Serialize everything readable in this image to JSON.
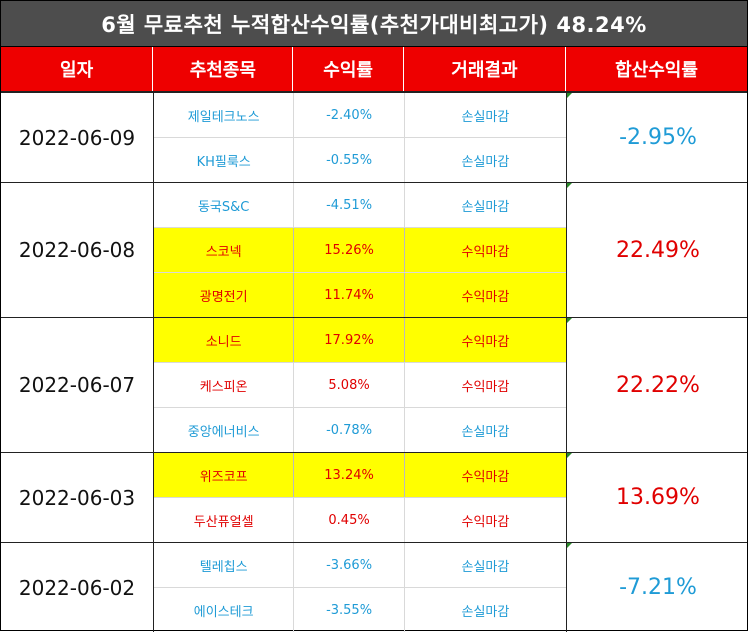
{
  "title": "6월 무료추천 누적합산수익률(추천가대비최고가) 48.24%",
  "headers": [
    "일자",
    "추천종목",
    "수익률",
    "거래결과",
    "합산수익률"
  ],
  "colors": {
    "positive": "#e00000",
    "negative": "#1f9bd6",
    "highlight": "#ffff00",
    "header": "#ee0000",
    "title_bg": "#4d4d4d"
  },
  "groups": [
    {
      "date": "2022-06-09",
      "total": "-2.95%",
      "rows": [
        {
          "name": "제일테크노스",
          "rate": "-2.40%",
          "result": "손실마감"
        },
        {
          "name": "KH필룩스",
          "rate": "-0.55%",
          "result": "손실마감"
        }
      ]
    },
    {
      "date": "2022-06-08",
      "total": "22.49%",
      "rows": [
        {
          "name": "동국S&C",
          "rate": "-4.51%",
          "result": "손실마감"
        },
        {
          "name": "스코넥",
          "rate": "15.26%",
          "result": "수익마감"
        },
        {
          "name": "광명전기",
          "rate": "11.74%",
          "result": "수익마감"
        }
      ]
    },
    {
      "date": "2022-06-07",
      "total": "22.22%",
      "rows": [
        {
          "name": "소니드",
          "rate": "17.92%",
          "result": "수익마감"
        },
        {
          "name": "케스피온",
          "rate": "5.08%",
          "result": "수익마감"
        },
        {
          "name": "중앙에너비스",
          "rate": "-0.78%",
          "result": "손실마감"
        }
      ]
    },
    {
      "date": "2022-06-03",
      "total": "13.69%",
      "rows": [
        {
          "name": "위즈코프",
          "rate": "13.24%",
          "result": "수익마감"
        },
        {
          "name": "두산퓨얼셀",
          "rate": "0.45%",
          "result": "수익마감"
        }
      ]
    },
    {
      "date": "2022-06-02",
      "total": "-7.21%",
      "rows": [
        {
          "name": "텔레칩스",
          "rate": "-3.66%",
          "result": "손실마감"
        },
        {
          "name": "에이스테크",
          "rate": "-3.55%",
          "result": "손실마감"
        }
      ]
    }
  ]
}
